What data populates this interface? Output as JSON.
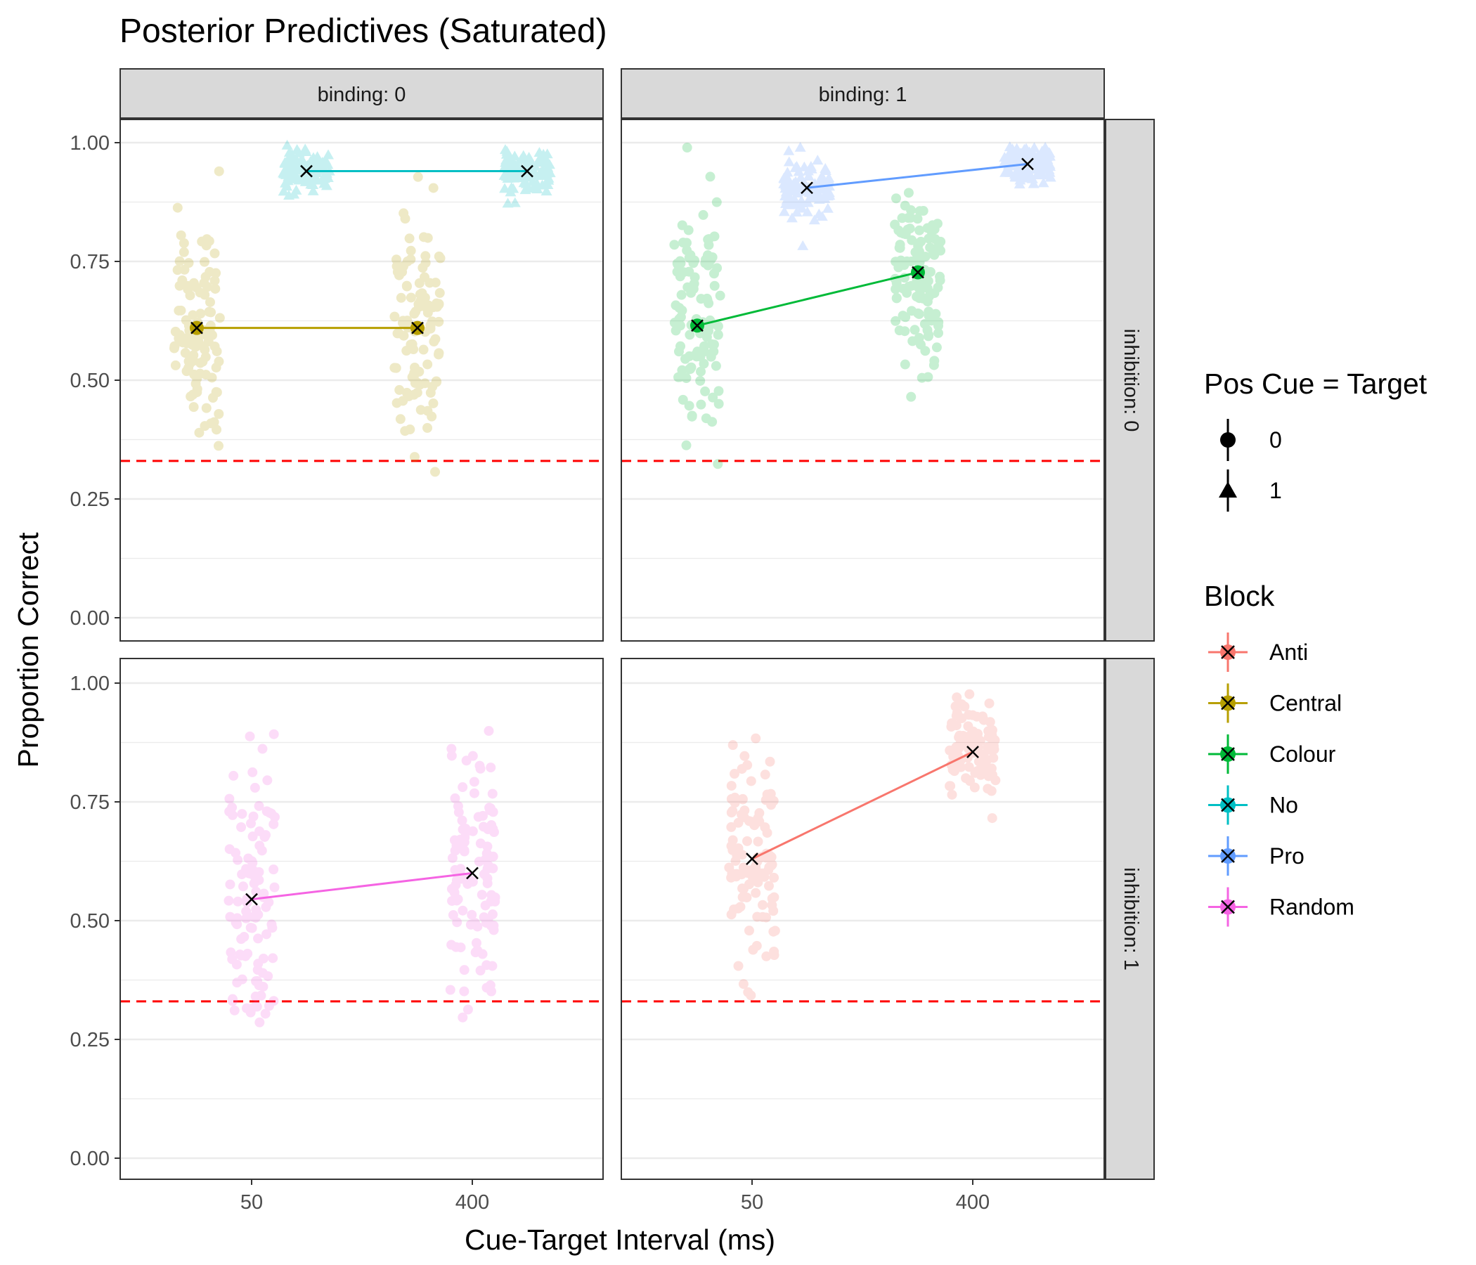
{
  "chart_data": {
    "type": "scatter",
    "title": "Posterior Predictives (Saturated)",
    "xlabel": "Cue-Target Interval (ms)",
    "ylabel": "Proportion Correct",
    "x_tick_labels": [
      "50",
      "400"
    ],
    "y_ticks": [
      {
        "value": 0.0,
        "label": "0.00"
      },
      {
        "value": 0.25,
        "label": "0.25"
      },
      {
        "value": 0.5,
        "label": "0.50"
      },
      {
        "value": 0.75,
        "label": "0.75"
      },
      {
        "value": 1.0,
        "label": "1.00"
      }
    ],
    "ylim": [
      -0.05,
      1.05
    ],
    "chance_line": 0.33,
    "grid": true,
    "legend_position": "right",
    "facets": {
      "columns": [
        "binding: 0",
        "binding: 1"
      ],
      "rows": [
        "inhibition: 0",
        "inhibition: 1"
      ]
    },
    "legends": [
      {
        "title": "Pos Cue = Target",
        "items": [
          {
            "label": "0",
            "shape": "circle"
          },
          {
            "label": "1",
            "shape": "triangle"
          }
        ]
      },
      {
        "title": "Block",
        "items": [
          {
            "label": "Anti",
            "color": "#F8766D"
          },
          {
            "label": "Central",
            "color": "#B79F00"
          },
          {
            "label": "Colour",
            "color": "#00BA38"
          },
          {
            "label": "No",
            "color": "#00BFC4"
          },
          {
            "label": "Pro",
            "color": "#619CFF"
          },
          {
            "label": "Random",
            "color": "#F564E3"
          }
        ]
      }
    ],
    "panels": [
      {
        "column": 0,
        "row": 0,
        "series": [
          {
            "block": "Central",
            "pos_cue": "0",
            "points": [
              {
                "x": "50",
                "y": 0.61
              },
              {
                "x": "400",
                "y": 0.61
              }
            ]
          },
          {
            "block": "No",
            "pos_cue": "1",
            "points": [
              {
                "x": "50",
                "y": 0.94
              },
              {
                "x": "400",
                "y": 0.94
              }
            ]
          }
        ]
      },
      {
        "column": 1,
        "row": 0,
        "series": [
          {
            "block": "Colour",
            "pos_cue": "0",
            "points": [
              {
                "x": "50",
                "y": 0.615
              },
              {
                "x": "400",
                "y": 0.727
              }
            ]
          },
          {
            "block": "Pro",
            "pos_cue": "1",
            "points": [
              {
                "x": "50",
                "y": 0.905
              },
              {
                "x": "400",
                "y": 0.955
              }
            ]
          }
        ]
      },
      {
        "column": 0,
        "row": 1,
        "series": [
          {
            "block": "Random",
            "pos_cue": "",
            "points": [
              {
                "x": "50",
                "y": 0.545
              },
              {
                "x": "400",
                "y": 0.6
              }
            ]
          }
        ]
      },
      {
        "column": 1,
        "row": 1,
        "series": [
          {
            "block": "Anti",
            "pos_cue": "",
            "points": [
              {
                "x": "50",
                "y": 0.63
              },
              {
                "x": "400",
                "y": 0.855
              }
            ]
          }
        ]
      }
    ]
  }
}
